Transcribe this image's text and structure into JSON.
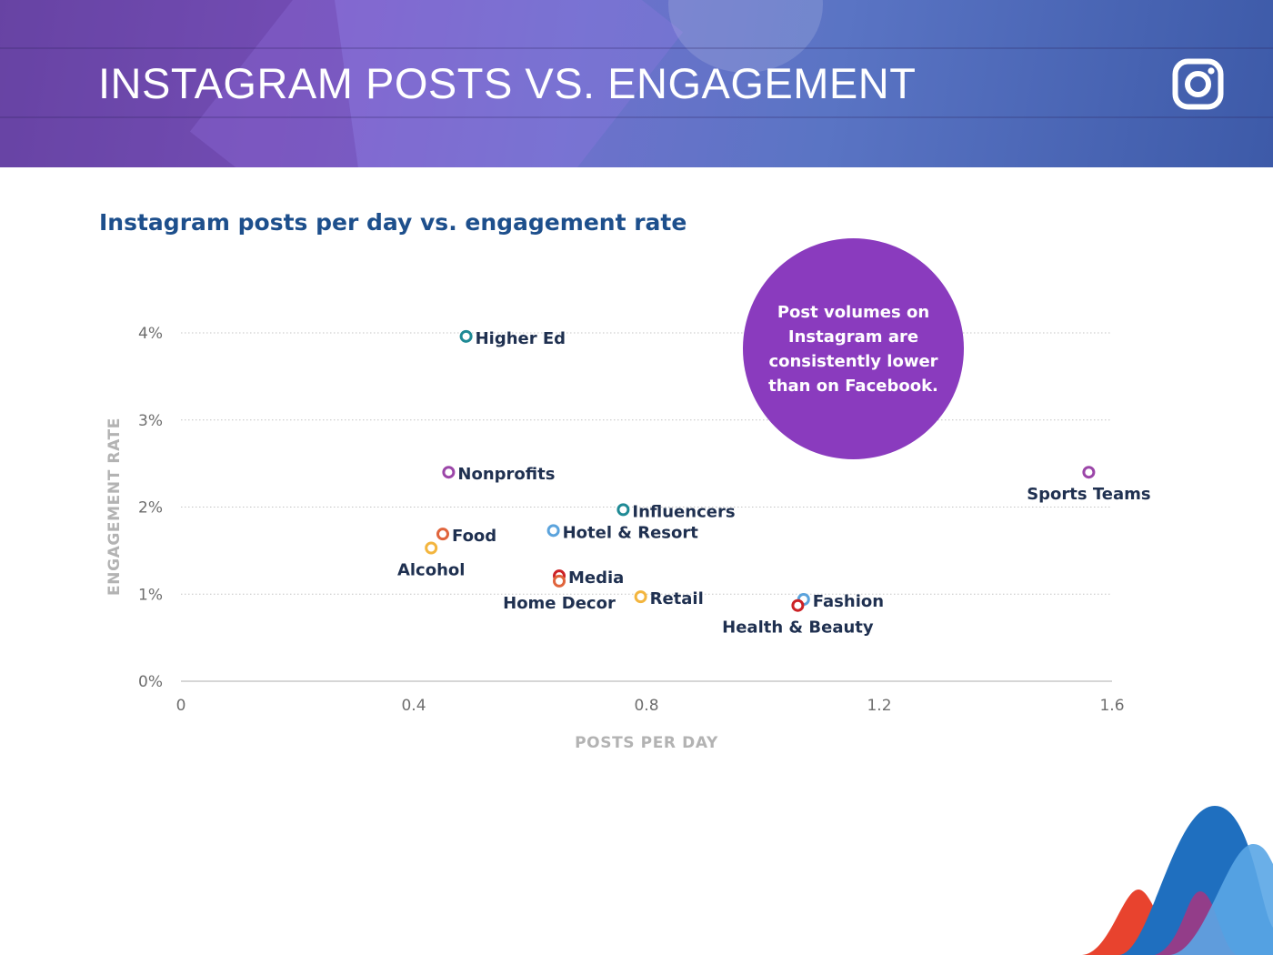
{
  "header": {
    "title": "INSTAGRAM POSTS VS. ENGAGEMENT",
    "icon": "instagram-icon"
  },
  "callout": {
    "text": "Post volumes on Instagram are consistently lower than on Facebook."
  },
  "chart_data": {
    "type": "scatter",
    "title": "Instagram posts per day vs. engagement rate",
    "xlabel": "POSTS PER DAY",
    "ylabel": "ENGAGEMENT RATE",
    "xlim": [
      0,
      1.6
    ],
    "ylim": [
      0,
      4
    ],
    "x_ticks": [
      0,
      0.4,
      0.8,
      1.2,
      1.6
    ],
    "x_tick_labels": [
      "0",
      "0.4",
      "0.8",
      "1.2",
      "1.6"
    ],
    "y_ticks": [
      0,
      1,
      2,
      3,
      4
    ],
    "y_tick_labels": [
      "0%",
      "1%",
      "2%",
      "3%",
      "4%"
    ],
    "grid": "horizontal dotted",
    "legend": "none",
    "points": [
      {
        "label": "Higher Ed",
        "x": 0.49,
        "y": 3.96,
        "color": "#1f8a95",
        "label_side": "right"
      },
      {
        "label": "Nonprofits",
        "x": 0.46,
        "y": 2.4,
        "color": "#9b46a8",
        "label_side": "right"
      },
      {
        "label": "Sports Teams",
        "x": 1.56,
        "y": 2.4,
        "color": "#9b46a8",
        "label_side": "below"
      },
      {
        "label": "Influencers",
        "x": 0.76,
        "y": 1.97,
        "color": "#1f8a95",
        "label_side": "right"
      },
      {
        "label": "Hotel & Resort",
        "x": 0.64,
        "y": 1.73,
        "color": "#5ba3dc",
        "label_side": "right"
      },
      {
        "label": "Food",
        "x": 0.45,
        "y": 1.69,
        "color": "#e0643c",
        "label_side": "right"
      },
      {
        "label": "Alcohol",
        "x": 0.43,
        "y": 1.53,
        "color": "#f3b53e",
        "label_side": "below"
      },
      {
        "label": "Media",
        "x": 0.65,
        "y": 1.21,
        "color": "#cc2226",
        "label_side": "right"
      },
      {
        "label": "Home Decor",
        "x": 0.65,
        "y": 1.15,
        "color": "#e0643c",
        "label_side": "below"
      },
      {
        "label": "Retail",
        "x": 0.79,
        "y": 0.97,
        "color": "#f3b53e",
        "label_side": "right"
      },
      {
        "label": "Fashion",
        "x": 1.07,
        "y": 0.94,
        "color": "#5ba3dc",
        "label_side": "right"
      },
      {
        "label": "Health & Beauty",
        "x": 1.06,
        "y": 0.87,
        "color": "#cc2226",
        "label_side": "below"
      }
    ]
  }
}
